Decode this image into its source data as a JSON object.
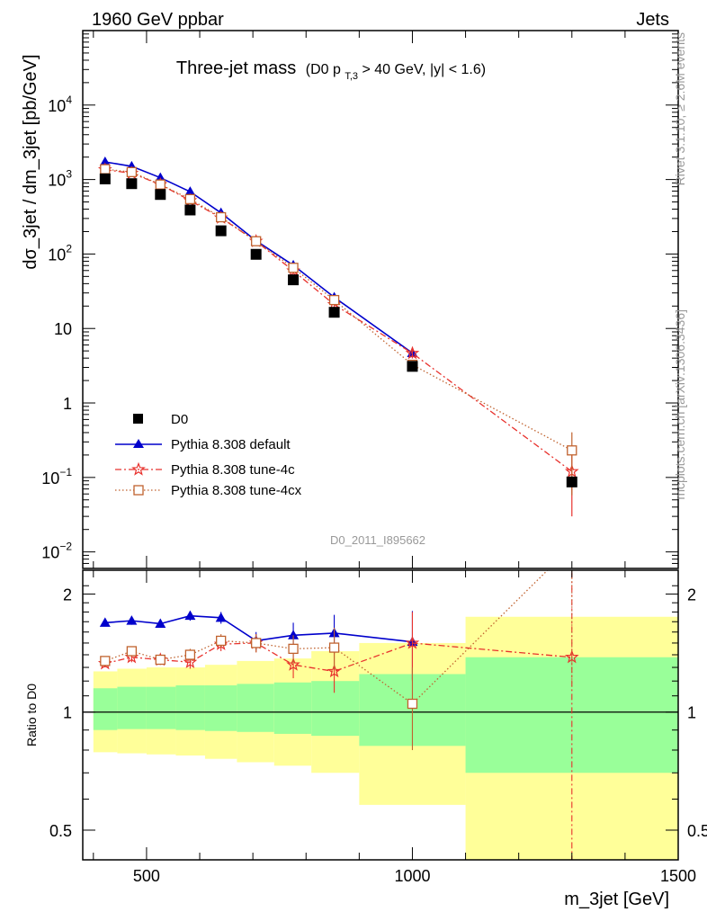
{
  "header": {
    "left": "1960 GeV ppbar",
    "right": "Jets"
  },
  "side_labels": {
    "rivet": "Rivet 3.1.10, ≥ 2.6M events",
    "mcplots": "mcplots.cern.ch [arXiv:1306.3436]"
  },
  "chart_data": {
    "type": "scatter",
    "title": "Three-jet mass",
    "title_detail": {
      "prefix": "(D0 p",
      "subscript": "T,3",
      "suffix": " > 40 GeV, |y| < 1.6)"
    },
    "analysis_id": "D0_2011_I895662",
    "xlabel": "m_3jet [GeV]",
    "ylabel": "dσ_3jet / dm_3jet [pb/GeV]",
    "ratio_ylabel": "Ratio to D0",
    "xlim": [
      380,
      1500
    ],
    "ylim": [
      0.006,
      100000
    ],
    "ylog": true,
    "ratio_ylim": [
      0.42,
      2.3
    ],
    "ratio_ylog": true,
    "x_ticks": [
      500,
      1000,
      1500
    ],
    "x_tick_labels": [
      "500",
      "1000",
      "1500"
    ],
    "y_ticks": [
      {
        "value": 0.01,
        "base": "10",
        "exp": "−2"
      },
      {
        "value": 0.1,
        "base": "10",
        "exp": "−1"
      },
      {
        "value": 1,
        "base": "1",
        "exp": ""
      },
      {
        "value": 10,
        "base": "10",
        "exp": ""
      },
      {
        "value": 100,
        "base": "10",
        "exp": "2"
      },
      {
        "value": 1000,
        "base": "10",
        "exp": "3"
      },
      {
        "value": 10000,
        "base": "10",
        "exp": "4"
      }
    ],
    "ratio_ticks": [
      {
        "value": 0.5,
        "label": "0.5"
      },
      {
        "value": 1,
        "label": "1"
      },
      {
        "value": 2,
        "label": "2"
      }
    ],
    "legend_position": "bottom-left",
    "bins": [
      {
        "lo": 400,
        "hi": 445,
        "x": 422
      },
      {
        "lo": 445,
        "hi": 500,
        "x": 472
      },
      {
        "lo": 500,
        "hi": 555,
        "x": 526
      },
      {
        "lo": 555,
        "hi": 610,
        "x": 582
      },
      {
        "lo": 610,
        "hi": 670,
        "x": 640
      },
      {
        "lo": 670,
        "hi": 740,
        "x": 706
      },
      {
        "lo": 740,
        "hi": 810,
        "x": 776
      },
      {
        "lo": 810,
        "hi": 900,
        "x": 853
      },
      {
        "lo": 900,
        "hi": 1100,
        "x": 1000
      },
      {
        "lo": 1100,
        "hi": 1500,
        "x": 1300
      }
    ],
    "band_stat": [
      [
        0.9,
        1.15
      ],
      [
        0.905,
        1.16
      ],
      [
        0.905,
        1.16
      ],
      [
        0.9,
        1.17
      ],
      [
        0.895,
        1.17
      ],
      [
        0.89,
        1.18
      ],
      [
        0.88,
        1.19
      ],
      [
        0.87,
        1.2
      ],
      [
        0.82,
        1.25
      ],
      [
        0.7,
        1.38
      ]
    ],
    "band_total": [
      [
        0.79,
        1.27
      ],
      [
        0.785,
        1.29
      ],
      [
        0.78,
        1.3
      ],
      [
        0.775,
        1.3
      ],
      [
        0.76,
        1.32
      ],
      [
        0.745,
        1.35
      ],
      [
        0.73,
        1.37
      ],
      [
        0.7,
        1.43
      ],
      [
        0.58,
        1.5
      ],
      [
        0.4,
        1.75
      ]
    ],
    "data": {
      "name": "D0",
      "color": "#000000",
      "values": [
        1020,
        880,
        630,
        390,
        205,
        99,
        45,
        16.5,
        3.1,
        0.087
      ]
    },
    "series": [
      {
        "name": "Pythia 8.308 default",
        "color": "#0000cc",
        "marker": "triangle",
        "line": "solid",
        "ratio_n": 9,
        "ratio": [
          1.69,
          1.71,
          1.68,
          1.76,
          1.74,
          1.52,
          1.57,
          1.59,
          1.51
        ],
        "ratio_err": [
          0.03,
          0.04,
          0.04,
          0.05,
          0.06,
          0.08,
          0.12,
          0.18,
          0.3
        ]
      },
      {
        "name": "Pythia 8.308 tune-4c",
        "color": "#e8322d",
        "marker": "star",
        "line": "dashdot",
        "ratio_n": 10,
        "ratio": [
          1.33,
          1.38,
          1.36,
          1.34,
          1.49,
          1.5,
          1.32,
          1.27,
          1.5,
          1.38
        ],
        "ratio_err": [
          0.03,
          0.04,
          0.04,
          0.05,
          0.06,
          0.08,
          0.1,
          0.15,
          0.3,
          1.5
        ]
      },
      {
        "name": "Pythia 8.308 tune-4cx",
        "color": "#c0622e",
        "marker": "square",
        "line": "dotted",
        "ratio_n": 10,
        "ratio": [
          1.35,
          1.43,
          1.36,
          1.4,
          1.52,
          1.5,
          1.45,
          1.46,
          1.05,
          2.65
        ],
        "ratio_err": [
          0.03,
          0.04,
          0.04,
          0.05,
          0.06,
          0.08,
          0.12,
          0.18,
          0.25,
          1.5
        ]
      }
    ],
    "band_colors": {
      "stat": "#99ff99",
      "total": "#ffff99"
    }
  }
}
